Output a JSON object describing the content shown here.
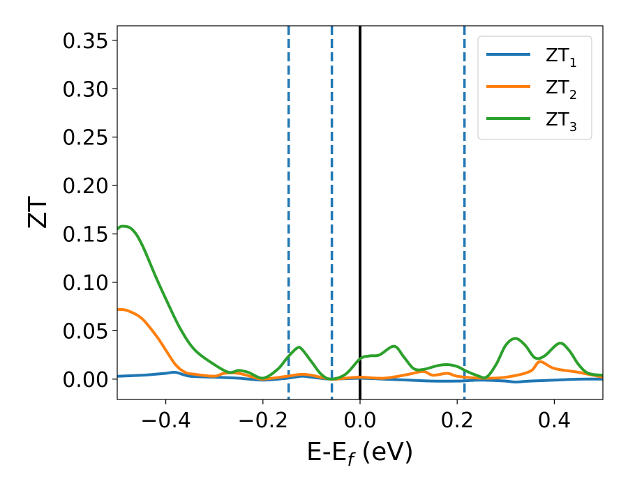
{
  "chart_data": {
    "type": "line",
    "title": "",
    "xlabel": "E-E",
    "xlabel_sub": "f",
    "xlabel_suffix": " (eV)",
    "ylabel": "ZT",
    "xlim": [
      -0.5,
      0.5
    ],
    "ylim": [
      -0.021,
      0.365
    ],
    "xticks": [
      -0.4,
      -0.2,
      0.0,
      0.2,
      0.4
    ],
    "xtick_labels": [
      "−0.4",
      "−0.2",
      "0.0",
      "0.2",
      "0.4"
    ],
    "yticks": [
      0.0,
      0.05,
      0.1,
      0.15,
      0.2,
      0.25,
      0.3,
      0.35
    ],
    "ytick_labels": [
      "0.00",
      "0.05",
      "0.10",
      "0.15",
      "0.20",
      "0.25",
      "0.30",
      "0.35"
    ],
    "grid": false,
    "legend_position": "top-right",
    "vertical_lines": [
      {
        "x": 0.0,
        "style": "solid",
        "color": "#000000"
      },
      {
        "x": -0.147,
        "style": "dashed",
        "color": "#1f77b4"
      },
      {
        "x": -0.058,
        "style": "dashed",
        "color": "#1f77b4"
      },
      {
        "x": 0.215,
        "style": "dashed",
        "color": "#1f77b4"
      }
    ],
    "series": [
      {
        "name": "ZT",
        "name_sub": "1",
        "color": "#1f77b4",
        "x": [
          -0.5,
          -0.45,
          -0.4,
          -0.38,
          -0.35,
          -0.3,
          -0.25,
          -0.2,
          -0.15,
          -0.12,
          -0.1,
          -0.06,
          0.0,
          0.05,
          0.1,
          0.15,
          0.2,
          0.25,
          0.3,
          0.32,
          0.35,
          0.4,
          0.45,
          0.5
        ],
        "y": [
          0.003,
          0.004,
          0.006,
          0.007,
          0.003,
          0.002,
          0.001,
          -0.001,
          0.001,
          0.003,
          0.002,
          0.0,
          0.001,
          0.0,
          -0.001,
          -0.002,
          -0.002,
          -0.001,
          -0.002,
          -0.003,
          -0.002,
          -0.001,
          0.0,
          0.0
        ]
      },
      {
        "name": "ZT",
        "name_sub": "2",
        "color": "#ff7f0e",
        "x": [
          -0.5,
          -0.48,
          -0.45,
          -0.42,
          -0.4,
          -0.38,
          -0.36,
          -0.34,
          -0.3,
          -0.28,
          -0.25,
          -0.22,
          -0.2,
          -0.15,
          -0.12,
          -0.1,
          -0.06,
          -0.03,
          0.0,
          0.05,
          0.1,
          0.13,
          0.15,
          0.18,
          0.2,
          0.25,
          0.3,
          0.35,
          0.37,
          0.4,
          0.45,
          0.5
        ],
        "y": [
          0.072,
          0.071,
          0.063,
          0.045,
          0.03,
          0.015,
          0.007,
          0.005,
          0.003,
          0.006,
          0.006,
          0.002,
          0.0,
          0.003,
          0.005,
          0.004,
          0.0,
          0.001,
          0.002,
          0.001,
          0.005,
          0.008,
          0.004,
          0.006,
          0.003,
          0.001,
          0.002,
          0.008,
          0.018,
          0.011,
          0.007,
          0.002
        ]
      },
      {
        "name": "ZT",
        "name_sub": "3",
        "color": "#2ca02c",
        "x": [
          -0.5,
          -0.49,
          -0.47,
          -0.45,
          -0.42,
          -0.4,
          -0.37,
          -0.34,
          -0.3,
          -0.27,
          -0.25,
          -0.23,
          -0.2,
          -0.17,
          -0.15,
          -0.13,
          -0.12,
          -0.1,
          -0.08,
          -0.06,
          -0.03,
          0.0,
          0.02,
          0.04,
          0.07,
          0.09,
          0.11,
          0.13,
          0.16,
          0.18,
          0.2,
          0.22,
          0.24,
          0.26,
          0.28,
          0.3,
          0.32,
          0.34,
          0.36,
          0.38,
          0.41,
          0.43,
          0.45,
          0.47,
          0.5
        ],
        "y": [
          0.155,
          0.158,
          0.155,
          0.14,
          0.105,
          0.083,
          0.052,
          0.03,
          0.015,
          0.007,
          0.009,
          0.007,
          0.001,
          0.01,
          0.022,
          0.032,
          0.031,
          0.018,
          0.005,
          0.0,
          0.005,
          0.021,
          0.024,
          0.025,
          0.034,
          0.023,
          0.011,
          0.01,
          0.014,
          0.015,
          0.013,
          0.008,
          0.004,
          0.002,
          0.015,
          0.035,
          0.042,
          0.035,
          0.022,
          0.024,
          0.037,
          0.03,
          0.015,
          0.006,
          0.004
        ]
      }
    ]
  }
}
